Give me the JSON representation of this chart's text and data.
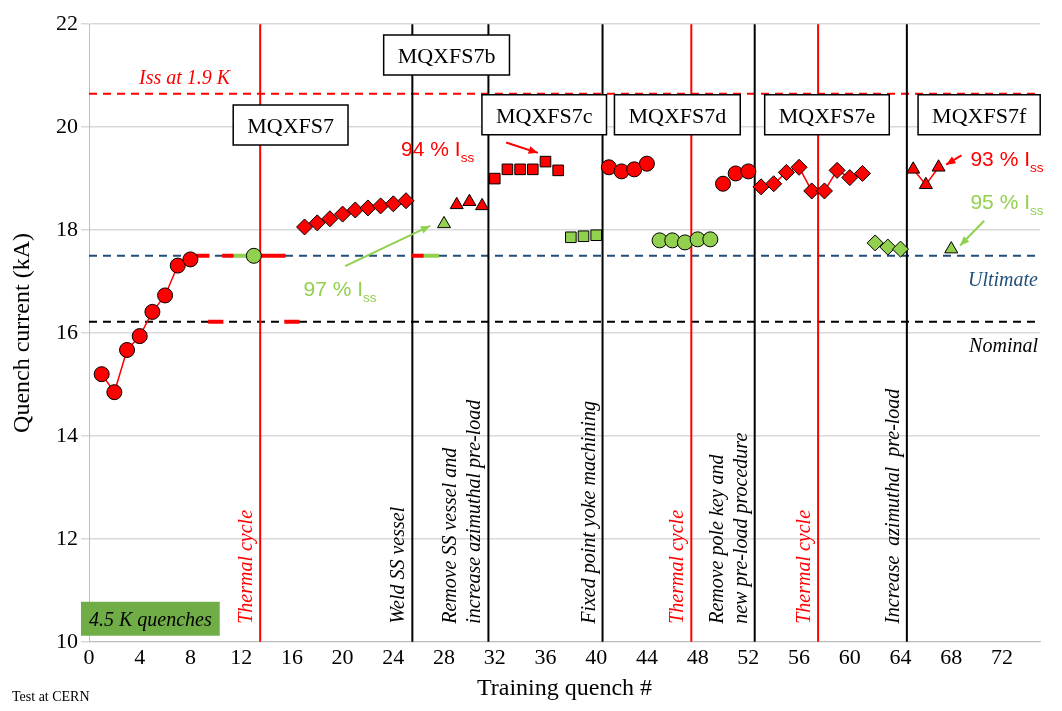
{
  "chart_data": {
    "type": "line",
    "xlabel": "Training quench #",
    "ylabel": "Quench current (kA)",
    "xlim": [
      0,
      75
    ],
    "xticks": [
      0,
      4,
      8,
      12,
      16,
      20,
      24,
      28,
      32,
      36,
      40,
      44,
      48,
      52,
      56,
      60,
      64,
      68,
      72
    ],
    "ylim": [
      10,
      22
    ],
    "yticks": [
      10,
      12,
      14,
      16,
      18,
      20,
      22
    ],
    "grid": "y",
    "legend": false,
    "series": [
      {
        "type": "line",
        "marker": "circle",
        "color": "#ff0000",
        "x": [
          1,
          2,
          3,
          4,
          5,
          6,
          7,
          8
        ],
        "values": [
          15.2,
          14.85,
          15.67,
          15.94,
          16.41,
          16.73,
          17.31,
          17.43
        ]
      },
      {
        "type": "scatter",
        "marker": "circle",
        "color": "#92d050",
        "x": [
          13
        ],
        "values": [
          17.5
        ]
      },
      {
        "type": "scatter",
        "marker": "diamond",
        "color": "#ff0000",
        "x": [
          17,
          18,
          19,
          20,
          21,
          22,
          23,
          24,
          25
        ],
        "values": [
          18.06,
          18.14,
          18.22,
          18.31,
          18.39,
          18.43,
          18.47,
          18.51,
          18.57
        ]
      },
      {
        "type": "scatter",
        "marker": "triangle",
        "color": "#92d050",
        "x": [
          28
        ],
        "values": [
          18.12
        ]
      },
      {
        "type": "scatter",
        "marker": "triangle",
        "color": "#ff0000",
        "x": [
          29,
          30,
          31
        ],
        "values": [
          18.49,
          18.55,
          18.47
        ]
      },
      {
        "type": "scatter",
        "marker": "square",
        "color": "#ff0000",
        "x": [
          32,
          33,
          34,
          35,
          36,
          37
        ],
        "values": [
          19.0,
          19.18,
          19.18,
          19.18,
          19.33,
          19.16
        ]
      },
      {
        "type": "scatter",
        "marker": "square",
        "color": "#92d050",
        "x": [
          38,
          39,
          40
        ],
        "values": [
          17.86,
          17.88,
          17.9
        ]
      },
      {
        "type": "scatter",
        "marker": "circle",
        "color": "#ff0000",
        "x": [
          41,
          42,
          43,
          44
        ],
        "values": [
          19.22,
          19.14,
          19.18,
          19.29
        ]
      },
      {
        "type": "scatter",
        "marker": "circle",
        "color": "#92d050",
        "x": [
          45,
          46,
          47,
          48,
          49
        ],
        "values": [
          17.8,
          17.8,
          17.76,
          17.82,
          17.82
        ]
      },
      {
        "type": "scatter",
        "marker": "circle",
        "color": "#ff0000",
        "x": [
          50,
          51,
          52
        ],
        "values": [
          18.9,
          19.1,
          19.14
        ]
      },
      {
        "type": "line",
        "marker": "diamond",
        "color": "#ff0000",
        "x": [
          53,
          54,
          55,
          56,
          57,
          58,
          59,
          60,
          61
        ],
        "values": [
          18.84,
          18.9,
          19.12,
          19.22,
          18.76,
          18.76,
          19.16,
          19.02,
          19.1
        ]
      },
      {
        "type": "scatter",
        "marker": "diamond",
        "color": "#92d050",
        "x": [
          62,
          63,
          64
        ],
        "values": [
          17.75,
          17.67,
          17.63
        ]
      },
      {
        "type": "line",
        "marker": "triangle",
        "color": "#ff0000",
        "x": [
          65,
          66,
          67
        ],
        "values": [
          19.18,
          18.88,
          19.22
        ]
      },
      {
        "type": "scatter",
        "marker": "triangle",
        "color": "#92d050",
        "x": [
          68
        ],
        "values": [
          17.63
        ]
      },
      {
        "type": "line",
        "marker": "none",
        "color": "#ff0000",
        "x": [
          8.4,
          9.5,
          10,
          10.5,
          11.4,
          12.5,
          13.5,
          15.5,
          20,
          25.4,
          26.4
        ],
        "values": [
          17.5,
          17.5,
          null,
          17.5,
          17.5,
          null,
          17.5,
          17.5,
          null,
          17.5,
          17.5
        ]
      },
      {
        "type": "line",
        "marker": "none",
        "color": "#92d050",
        "x": [
          11.4,
          13,
          20,
          26.4,
          27.6
        ],
        "values": [
          17.5,
          17.5,
          null,
          17.5,
          17.5
        ]
      },
      {
        "type": "line",
        "marker": "none",
        "color": "#ff0000",
        "x": [
          9.4,
          10.6,
          13,
          15.4,
          16.6
        ],
        "values": [
          16.22,
          16.22,
          null,
          16.22,
          16.22
        ]
      }
    ],
    "ref_lines": [
      {
        "axis": "y",
        "value": 20.65,
        "label": "Iss at 1.9 K",
        "color": "#ff0000",
        "line_style": "dashed"
      },
      {
        "axis": "y",
        "value": 17.5,
        "label": "Ultimate",
        "color": "#1f4e79",
        "line_style": "dashed"
      },
      {
        "axis": "y",
        "value": 16.22,
        "label": "Nominal",
        "color": "#000000",
        "line_style": "dashed"
      },
      {
        "axis": "x",
        "value": 13.5,
        "label": "Thermal cycle",
        "color": "#ff0000"
      },
      {
        "axis": "x",
        "value": 25.5,
        "label": "Weld SS vessel",
        "color": "#000000"
      },
      {
        "axis": "x",
        "value": 31.5,
        "label": "Remove SS vessel and\nincrease azimuthal pre-load",
        "color": "#000000"
      },
      {
        "axis": "x",
        "value": 40.5,
        "label": "Fixed point yoke machining",
        "color": "#000000"
      },
      {
        "axis": "x",
        "value": 47.5,
        "label": "Thermal cycle",
        "color": "#ff0000"
      },
      {
        "axis": "x",
        "value": 52.5,
        "label": "Remove pole key and\nnew pre-load procedure",
        "color": "#000000"
      },
      {
        "axis": "x",
        "value": 57.5,
        "label": "Thermal cycle",
        "color": "#ff0000"
      },
      {
        "axis": "x",
        "value": 64.5,
        "label": "Increase  azimuthal  pre-load",
        "color": "#000000"
      }
    ],
    "annotations": [
      "MQXFS7",
      "MQXFS7b",
      "MQXFS7c",
      "MQXFS7d",
      "MQXFS7e",
      "MQXFS7f",
      "94 % I$_{ss}$",
      "97 % I$_{ss}$",
      "93 % I$_{ss}$",
      "95 % I$_{ss}$",
      "4.5 K quenches",
      "Test at CERN"
    ]
  }
}
